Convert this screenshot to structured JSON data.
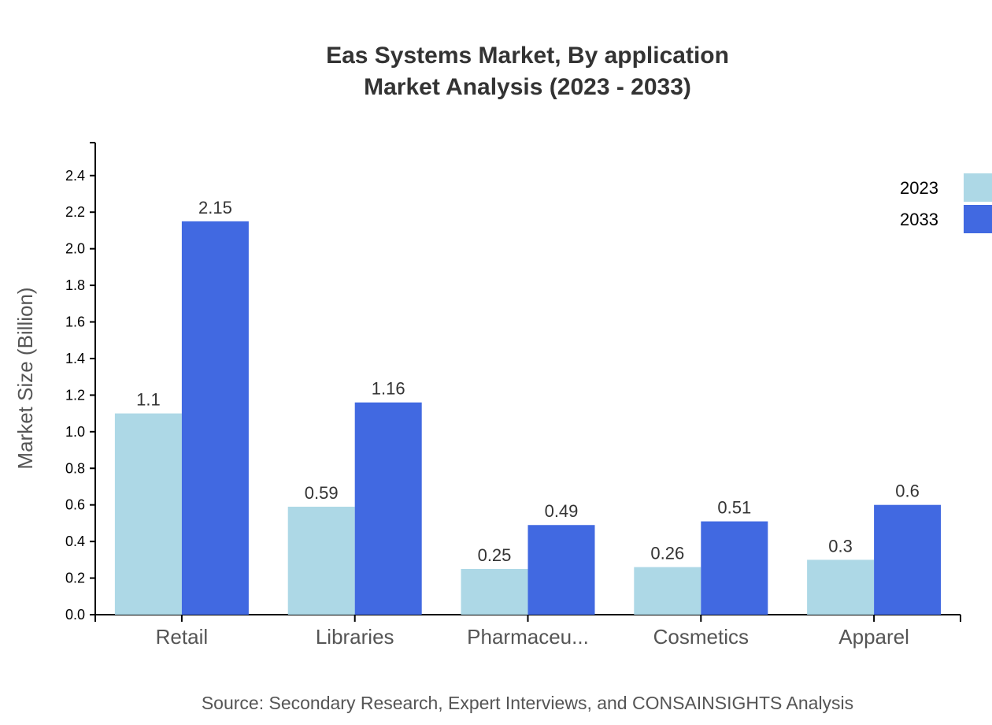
{
  "chart_data": {
    "type": "bar",
    "title": "Eas Systems Market, By application",
    "subtitle": "Market Analysis (2023 - 2033)",
    "xlabel": "",
    "ylabel": "Market Size (Billion)",
    "categories": [
      "Retail",
      "Libraries",
      "Pharmaceu...",
      "Cosmetics",
      "Apparel"
    ],
    "series": [
      {
        "name": "2023",
        "color": "#add8e6",
        "values": [
          1.1,
          0.59,
          0.25,
          0.26,
          0.3
        ]
      },
      {
        "name": "2033",
        "color": "#4169e1",
        "values": [
          2.15,
          1.16,
          0.49,
          0.51,
          0.6
        ]
      }
    ],
    "ylim": [
      0,
      2.58
    ],
    "yticks": [
      "0.0",
      "0.2",
      "0.4",
      "0.6",
      "0.8",
      "1.0",
      "1.2",
      "1.4",
      "1.6",
      "1.8",
      "2.0",
      "2.2",
      "2.4"
    ],
    "grid": false,
    "legend_position": "top-right",
    "source": "Source: Secondary Research, Expert Interviews, and CONSAINSIGHTS Analysis"
  }
}
